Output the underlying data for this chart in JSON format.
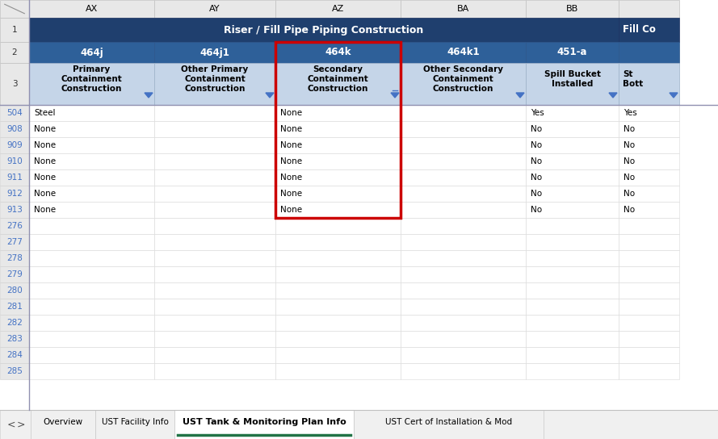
{
  "title_row": "Riser / Fill Pipe Piping Construction",
  "title_bg": "#1F3F6E",
  "title_color": "#FFFFFF",
  "header2_bg": "#2E6099",
  "header2_color": "#FFFFFF",
  "header3_bg": "#C5D5E8",
  "header3_color": "#000000",
  "col_letters": [
    "AX",
    "AY",
    "AZ",
    "BA",
    "BB"
  ],
  "row2_labels": [
    "464j",
    "464j1",
    "464k",
    "464k1",
    "451-a"
  ],
  "row3_labels": [
    "Primary\nContainment\nConstruction",
    "Other Primary\nContainment\nConstruction",
    "Secondary\nContainment\nConstruction",
    "Other Secondary\nContainment\nConstruction",
    "Spill Bucket\nInstalled"
  ],
  "row_numbers": [
    "504",
    "908",
    "909",
    "910",
    "911",
    "912",
    "913",
    "276",
    "277",
    "278",
    "279",
    "280",
    "281",
    "282",
    "283",
    "284",
    "285"
  ],
  "ax_data": [
    "Steel",
    "None",
    "None",
    "None",
    "None",
    "None",
    "None",
    "",
    "",
    "",
    "",
    "",
    "",
    "",
    "",
    "",
    ""
  ],
  "ay_data": [
    "",
    "",
    "",
    "",
    "",
    "",
    "",
    "",
    "",
    "",
    "",
    "",
    "",
    "",
    "",
    "",
    ""
  ],
  "az_data": [
    "None",
    "None",
    "None",
    "None",
    "None",
    "None",
    "None",
    "",
    "",
    "",
    "",
    "",
    "",
    "",
    "",
    "",
    ""
  ],
  "ba_data": [
    "",
    "",
    "",
    "",
    "",
    "",
    "",
    "",
    "",
    "",
    "",
    "",
    "",
    "",
    "",
    "",
    ""
  ],
  "bb_data": [
    "Yes",
    "No",
    "No",
    "No",
    "No",
    "No",
    "No",
    "",
    "",
    "",
    "",
    "",
    "",
    "",
    "",
    "",
    ""
  ],
  "bc_data": [
    "Yes",
    "No",
    "No",
    "No",
    "No",
    "No",
    "No",
    "",
    "",
    "",
    "",
    "",
    "",
    "",
    "",
    "",
    ""
  ],
  "tab_labels": [
    "Overview",
    "UST Facility Info",
    "UST Tank & Monitoring Plan Info",
    "UST Cert of Installation & Mod"
  ],
  "active_tab": "UST Tank & Monitoring Plan Info",
  "row_num_color": "#4472C4",
  "tab_active_underline": "#217346",
  "corner_bg": "#E8E8E8",
  "colhdr_bg": "#E8E8E8"
}
